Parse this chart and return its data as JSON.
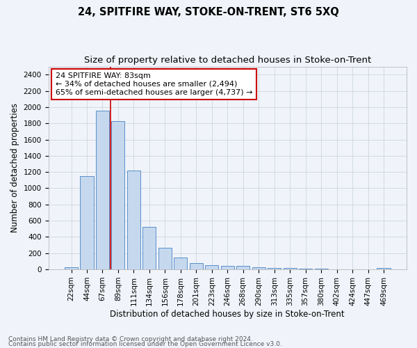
{
  "title": "24, SPITFIRE WAY, STOKE-ON-TRENT, ST6 5XQ",
  "subtitle": "Size of property relative to detached houses in Stoke-on-Trent",
  "xlabel": "Distribution of detached houses by size in Stoke-on-Trent",
  "ylabel": "Number of detached properties",
  "categories": [
    "22sqm",
    "44sqm",
    "67sqm",
    "89sqm",
    "111sqm",
    "134sqm",
    "156sqm",
    "178sqm",
    "201sqm",
    "223sqm",
    "246sqm",
    "268sqm",
    "290sqm",
    "313sqm",
    "335sqm",
    "357sqm",
    "380sqm",
    "402sqm",
    "424sqm",
    "447sqm",
    "469sqm"
  ],
  "values": [
    30,
    1150,
    1960,
    1830,
    1220,
    520,
    270,
    150,
    80,
    50,
    45,
    40,
    25,
    20,
    15,
    10,
    8,
    5,
    3,
    2,
    20
  ],
  "bar_color": "#c5d8ee",
  "bar_edge_color": "#5b8fc9",
  "vline_color": "#cc0000",
  "vline_bin_index": 3,
  "annotation_text": "24 SPITFIRE WAY: 83sqm\n← 34% of detached houses are smaller (2,494)\n65% of semi-detached houses are larger (4,737) →",
  "annotation_box_color": "#ffffff",
  "annotation_box_edge_color": "#cc0000",
  "ylim": [
    0,
    2500
  ],
  "yticks": [
    0,
    200,
    400,
    600,
    800,
    1000,
    1200,
    1400,
    1600,
    1800,
    2000,
    2200,
    2400
  ],
  "footer1": "Contains HM Land Registry data © Crown copyright and database right 2024.",
  "footer2": "Contains public sector information licensed under the Open Government Licence v3.0.",
  "bg_color": "#f0f4fa",
  "plot_bg_color": "#f0f4fa",
  "title_fontsize": 10.5,
  "subtitle_fontsize": 9.5,
  "axis_label_fontsize": 8.5,
  "tick_fontsize": 7.5,
  "annotation_fontsize": 8,
  "footer_fontsize": 6.5
}
